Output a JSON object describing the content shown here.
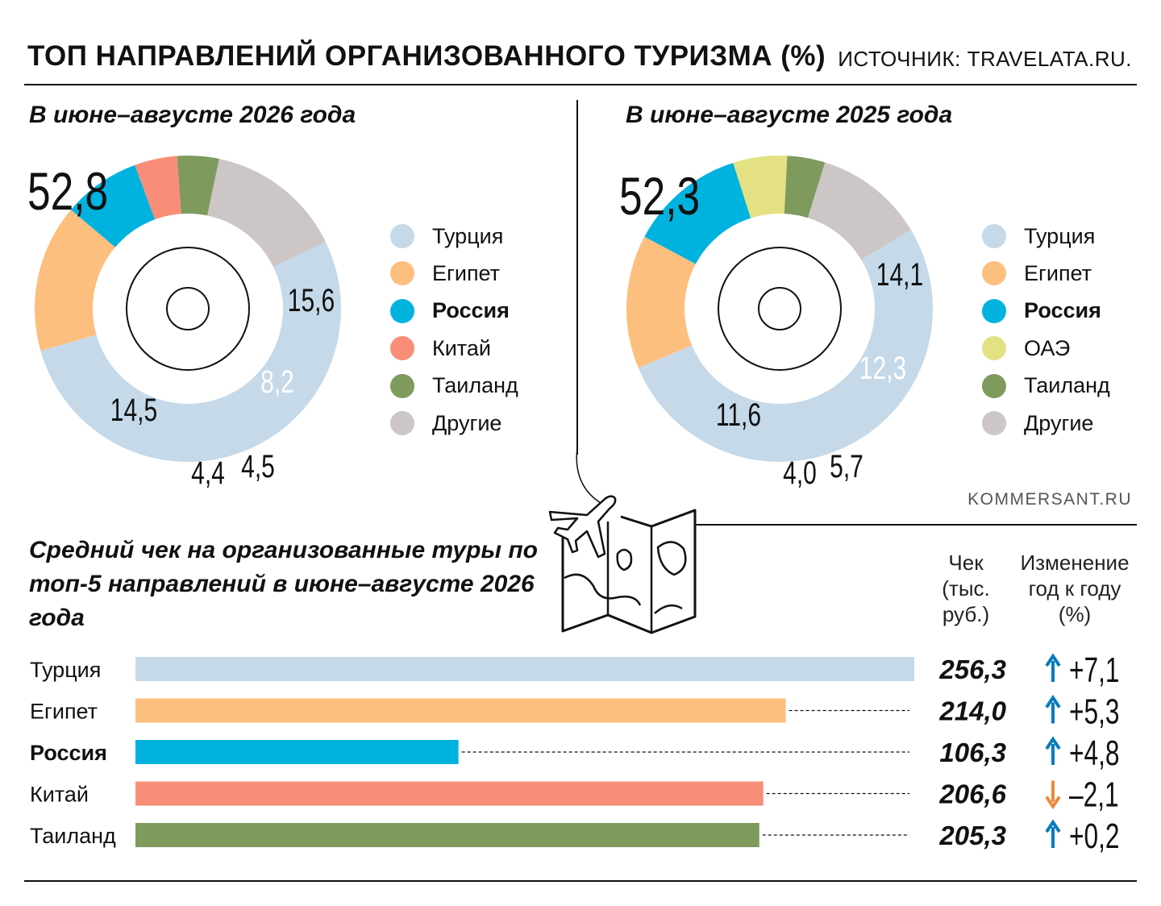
{
  "header": {
    "title": "ТОП НАПРАВЛЕНИЙ ОРГАНИЗОВАННОГО ТУРИЗМА (%)",
    "source": "ИСТОЧНИК: TRAVELATA.RU."
  },
  "credit": "KOMMERSANT.RU",
  "bars_section": {
    "title": "Средний чек на организованные туры по топ-5 направлений в июне–августе 2026 года",
    "col_check": "Чек (тыс. руб.)",
    "col_change": "Изменение год к году (%)"
  },
  "colors": {
    "Турция": "#c5d9e8",
    "Египет": "#fdbf7e",
    "Россия": "#00b3df",
    "Китай": "#f98e78",
    "ОАЭ": "#e3e183",
    "Таиланд": "#7e9a5d",
    "Другие": "#ccc6c6",
    "arrow_up": "#0a7bbd",
    "arrow_down": "#e98a3a"
  },
  "chart_data": [
    {
      "type": "pie",
      "title": "В июне–августе 2026 года",
      "categories": [
        "Турция",
        "Египет",
        "Россия",
        "Китай",
        "Таиланд",
        "Другие"
      ],
      "values": [
        52.8,
        15.6,
        8.2,
        4.5,
        4.4,
        14.5
      ],
      "labels": [
        "52,8",
        "15,6",
        "8,2",
        "4,5",
        "4,4",
        "14,5"
      ],
      "legend": [
        "Турция",
        "Египет",
        "Россия",
        "Китай",
        "Таиланд",
        "Другие"
      ]
    },
    {
      "type": "pie",
      "title": "В июне–августе 2025 года",
      "categories": [
        "Турция",
        "Египет",
        "Россия",
        "ОАЭ",
        "Таиланд",
        "Другие"
      ],
      "values": [
        52.3,
        14.1,
        12.3,
        5.7,
        4.0,
        11.6
      ],
      "labels": [
        "52,3",
        "14,1",
        "12,3",
        "5,7",
        "4,0",
        "11,6"
      ],
      "legend": [
        "Турция",
        "Египет",
        "Россия",
        "ОАЭ",
        "Таиланд",
        "Другие"
      ]
    },
    {
      "type": "bar",
      "title": "Средний чек на организованные туры по топ-5 направлений в июне–августе 2026 года",
      "categories": [
        "Турция",
        "Египет",
        "Россия",
        "Китай",
        "Таиланд"
      ],
      "values": [
        256.3,
        214.0,
        106.3,
        206.6,
        205.3
      ],
      "value_labels": [
        "256,3",
        "214,0",
        "106,3",
        "206,6",
        "205,3"
      ],
      "change": [
        7.1,
        5.3,
        4.8,
        -2.1,
        0.2
      ],
      "change_labels": [
        "+7,1",
        "+5,3",
        "+4,8",
        "–2,1",
        "+0,2"
      ],
      "highlight": "Россия"
    }
  ]
}
